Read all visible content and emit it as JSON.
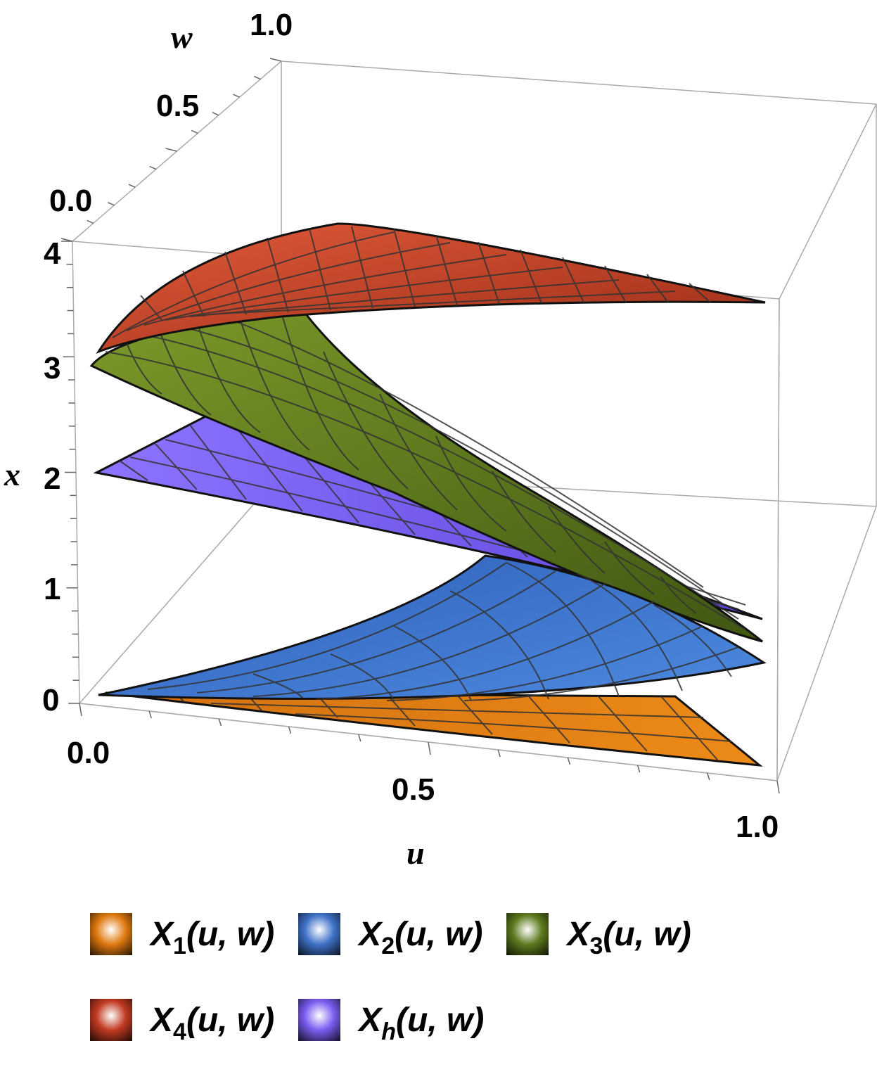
{
  "chart_data": {
    "type": "surface3d",
    "axes": {
      "u": {
        "label": "u",
        "ticks": [
          "0.0",
          "0.5",
          "1.0"
        ],
        "range": [
          0,
          1
        ]
      },
      "w": {
        "label": "w",
        "ticks": [
          "0.0",
          "0.5",
          "1.0"
        ],
        "range": [
          0,
          1
        ]
      },
      "x": {
        "label": "x",
        "ticks": [
          "0",
          "1",
          "2",
          "3",
          "4"
        ],
        "range": [
          0,
          4
        ]
      }
    },
    "series": [
      {
        "id": "X1",
        "name": "X1(u, w)",
        "legend": {
          "sym": "X",
          "sub": "1",
          "args": "(u, w)"
        },
        "color": "#e07a10",
        "x_range_approx": [
          0,
          0.5
        ]
      },
      {
        "id": "X2",
        "name": "X2(u, w)",
        "legend": {
          "sym": "X",
          "sub": "2",
          "args": "(u, w)"
        },
        "color": "#3f72c8",
        "x_range_approx": [
          0,
          1.0
        ]
      },
      {
        "id": "X3",
        "name": "X3(u, w)",
        "legend": {
          "sym": "X",
          "sub": "3",
          "args": "(u, w)"
        },
        "color": "#5d7a1e",
        "x_range_approx": [
          1.0,
          3.4
        ]
      },
      {
        "id": "X4",
        "name": "X4(u, w)",
        "legend": {
          "sym": "X",
          "sub": "4",
          "args": "(u, w)"
        },
        "color": "#c23a22",
        "x_range_approx": [
          3.0,
          4.0
        ]
      },
      {
        "id": "Xh",
        "name": "Xh(u, w)",
        "legend": {
          "sym": "X",
          "sub": "h",
          "args": "(u, w)"
        },
        "color": "#7b5cf0",
        "x_range_approx": [
          1.0,
          2.1
        ]
      }
    ],
    "legend_position": "bottom",
    "box": true,
    "grid": false
  }
}
